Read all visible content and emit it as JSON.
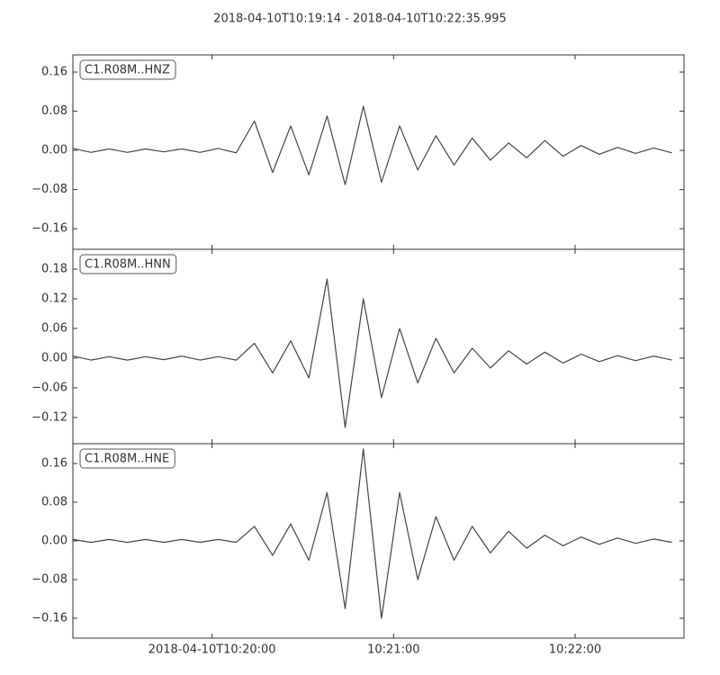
{
  "chart_data": {
    "type": "line",
    "title": "2018-04-10T10:19:14  -  2018-04-10T10:22:35.995",
    "color": "#444444",
    "xlim": [
      "2018-04-10T10:19:14",
      "2018-04-10T10:22:35.995"
    ],
    "xticks": [
      "2018-04-10T10:20:00",
      {
        "value": "2018-04-10T10:21:00",
        "label": "10:21:00"
      },
      {
        "value": "2018-04-10T10:22:00",
        "label": "10:22:00"
      }
    ],
    "x": [
      "2018-04-10T10:19:14",
      "2018-04-10T10:19:20",
      "2018-04-10T10:19:26",
      "2018-04-10T10:19:32",
      "2018-04-10T10:19:38",
      "2018-04-10T10:19:44",
      "2018-04-10T10:19:50",
      "2018-04-10T10:19:56",
      "2018-04-10T10:20:02",
      "2018-04-10T10:20:08",
      "2018-04-10T10:20:14",
      "2018-04-10T10:20:20",
      "2018-04-10T10:20:26",
      "2018-04-10T10:20:32",
      "2018-04-10T10:20:38",
      "2018-04-10T10:20:44",
      "2018-04-10T10:20:50",
      "2018-04-10T10:20:56",
      "2018-04-10T10:21:02",
      "2018-04-10T10:21:08",
      "2018-04-10T10:21:14",
      "2018-04-10T10:21:20",
      "2018-04-10T10:21:26",
      "2018-04-10T10:21:32",
      "2018-04-10T10:21:38",
      "2018-04-10T10:21:44",
      "2018-04-10T10:21:50",
      "2018-04-10T10:21:56",
      "2018-04-10T10:22:02",
      "2018-04-10T10:22:08",
      "2018-04-10T10:22:14",
      "2018-04-10T10:22:20",
      "2018-04-10T10:22:26",
      "2018-04-10T10:22:32"
    ],
    "panels": [
      {
        "label": "C1.R08M..HNZ",
        "ylim": [
          -0.202,
          0.195
        ],
        "yticks": [
          {
            "value": -0.16,
            "label": "−0.16"
          },
          {
            "value": -0.08,
            "label": "−0.08"
          },
          {
            "value": 0,
            "label": "0.00"
          },
          0.08,
          0.16
        ],
        "values": [
          0.004,
          -0.004,
          0.003,
          -0.004,
          0.003,
          -0.003,
          0.003,
          -0.004,
          0.004,
          -0.005,
          0.06,
          -0.045,
          0.05,
          -0.05,
          0.07,
          -0.07,
          0.09,
          -0.065,
          0.05,
          -0.04,
          0.03,
          -0.03,
          0.025,
          -0.02,
          0.015,
          -0.015,
          0.02,
          -0.012,
          0.01,
          -0.008,
          0.006,
          -0.006,
          0.005,
          -0.005
        ]
      },
      {
        "label": "C1.R08M..HNN",
        "ylim": [
          -0.173,
          0.22
        ],
        "yticks": [
          {
            "value": -0.12,
            "label": "−0.12"
          },
          {
            "value": -0.06,
            "label": "−0.06"
          },
          {
            "value": 0,
            "label": "0.00"
          },
          0.06,
          0.12,
          0.18
        ],
        "values": [
          0.004,
          -0.004,
          0.003,
          -0.004,
          0.003,
          -0.003,
          0.004,
          -0.004,
          0.003,
          -0.004,
          0.03,
          -0.03,
          0.035,
          -0.04,
          0.16,
          -0.14,
          0.12,
          -0.08,
          0.06,
          -0.05,
          0.04,
          -0.03,
          0.02,
          -0.02,
          0.015,
          -0.012,
          0.012,
          -0.01,
          0.008,
          -0.007,
          0.005,
          -0.005,
          0.004,
          -0.004
        ]
      },
      {
        "label": "C1.R08M..HNE",
        "ylim": [
          -0.201,
          0.201
        ],
        "yticks": [
          {
            "value": -0.16,
            "label": "−0.16"
          },
          {
            "value": -0.08,
            "label": "−0.08"
          },
          {
            "value": 0,
            "label": "0.00"
          },
          0.08,
          0.16
        ],
        "values": [
          0.003,
          -0.003,
          0.003,
          -0.003,
          0.003,
          -0.003,
          0.003,
          -0.003,
          0.003,
          -0.003,
          0.03,
          -0.03,
          0.035,
          -0.04,
          0.1,
          -0.14,
          0.19,
          -0.16,
          0.1,
          -0.08,
          0.05,
          -0.04,
          0.03,
          -0.025,
          0.02,
          -0.015,
          0.012,
          -0.01,
          0.008,
          -0.007,
          0.006,
          -0.005,
          0.004,
          -0.003
        ]
      }
    ]
  }
}
